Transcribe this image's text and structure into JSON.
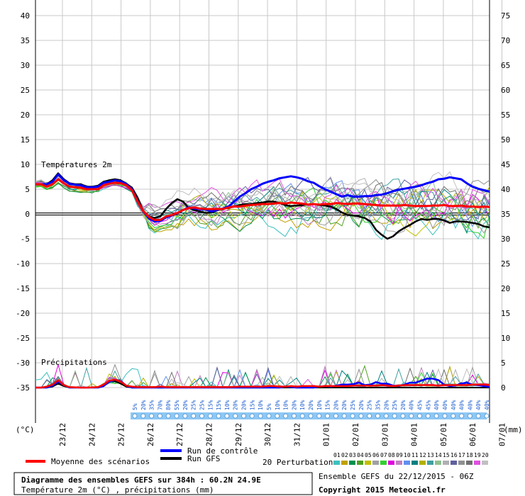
{
  "chart_data": {
    "type": "line",
    "title": "Diagramme des ensembles GEFS sur 384h : 60.2N 24.9E",
    "subtitle": "Température 2m (°C) , précipitations (mm)",
    "date_labels": [
      "23/12",
      "24/12",
      "25/12",
      "26/12",
      "27/12",
      "28/12",
      "29/12",
      "30/12",
      "31/12",
      "01/01",
      "02/01",
      "03/01",
      "04/01",
      "05/01",
      "06/01",
      "07/01"
    ],
    "left_axis": {
      "unit": "(°C)",
      "ticks": [
        40,
        35,
        30,
        25,
        20,
        15,
        10,
        5,
        0,
        -5,
        -10,
        -15,
        -20,
        -25,
        -30,
        -35
      ],
      "range": [
        -35,
        40
      ]
    },
    "right_axis": {
      "unit": "(mm)",
      "ticks": [
        75,
        70,
        65,
        60,
        55,
        50,
        45,
        40,
        35,
        30,
        25,
        20,
        15,
        10,
        5,
        0
      ]
    },
    "section_labels": {
      "temperature": "Températures 2m",
      "precipitation": "Précipitations"
    },
    "precip_probability": [
      "5%",
      "20%",
      "35%",
      "70%",
      "80%",
      "55%",
      "20%",
      "25%",
      "25%",
      "15%",
      "15%",
      "10%",
      "20%",
      "20%",
      "15%",
      "10%",
      "5%",
      "10%",
      "10%",
      "20%",
      "10%",
      "20%",
      "10%",
      "15%",
      "20%",
      "20%",
      "25%",
      "20%",
      "25%",
      "35%",
      "20%",
      "25%",
      "20%",
      "40%",
      "45%",
      "45%",
      "40%",
      "40%",
      "40%",
      "40%",
      "40%",
      "40%",
      "40%"
    ],
    "legend": {
      "mean": "Moyenne des scénarios",
      "control": "Run de contrôle",
      "gfs": "Run GFS",
      "perturbations_label": "20 Perturbations",
      "perturbation_ids": [
        "01",
        "02",
        "03",
        "04",
        "05",
        "06",
        "07",
        "08",
        "09",
        "10",
        "11",
        "12",
        "13",
        "14",
        "15",
        "16",
        "17",
        "18",
        "19",
        "20"
      ],
      "perturbation_colors": [
        "#3cc0c0",
        "#c0a000",
        "#009050",
        "#50a020",
        "#c0c000",
        "#a0a0a0",
        "#30d030",
        "#e000e0",
        "#c080c0",
        "#6090f0",
        "#008080",
        "#b0b000",
        "#40a0a0",
        "#90c090",
        "#b0b0b0",
        "#6060a0",
        "#909090",
        "#707070",
        "#e050e0",
        "#c0c0c0"
      ]
    },
    "series_temperature": {
      "mean": [
        6,
        6,
        5.5,
        6,
        7,
        6.2,
        5.5,
        5.4,
        5.3,
        5,
        5,
        5,
        5.8,
        6.1,
        6.3,
        6.2,
        5.8,
        4.8,
        2.5,
        0.6,
        -0.6,
        -1.2,
        -1.2,
        -0.5,
        -0.2,
        0.2,
        0.8,
        1.2,
        1.3,
        1.1,
        1,
        1,
        1,
        1,
        1.3,
        1.5,
        1.5,
        1.7,
        1.8,
        1.9,
        2,
        2,
        2.1,
        2.2,
        2.1,
        2.3,
        2.2,
        2.1,
        1.9,
        2,
        1.9,
        2,
        2,
        2.2,
        2.1,
        2,
        2.1,
        2.1,
        2,
        1.9,
        1.8,
        1.7,
        1.7,
        1.7,
        1.7,
        1.8,
        1.7,
        1.6,
        1.6,
        1.6,
        1.7,
        1.7,
        1.8,
        1.6,
        1.6,
        1.7,
        1.5,
        1.5,
        1.4,
        1.5,
        1.4
      ],
      "control": [
        6,
        6,
        6,
        6.5,
        8,
        6.8,
        6.1,
        5.9,
        5.8,
        5.4,
        5.4,
        5.5,
        6.3,
        6.5,
        6.8,
        6.6,
        6,
        5,
        2.6,
        0.6,
        -0.9,
        -1.5,
        -1.4,
        -0.7,
        -0.3,
        0.1,
        0.8,
        1.3,
        1.1,
        1,
        0.9,
        0.5,
        0.8,
        1.1,
        1.5,
        2.5,
        3.5,
        4.2,
        5,
        5.5,
        6.1,
        6.5,
        6.8,
        7.2,
        7.4,
        7.6,
        7.4,
        7.1,
        6.6,
        6.3,
        5.6,
        5,
        4.5,
        4,
        3.5,
        3.8,
        3.5,
        3.5,
        3.6,
        3.6,
        3.8,
        3.9,
        4.2,
        4.6,
        4.9,
        5.1,
        5.3,
        5.5,
        5.8,
        6.2,
        6.5,
        7,
        7.1,
        7.4,
        7.2,
        7,
        6.2,
        5.5,
        5.1,
        4.8,
        4.5
      ],
      "gfs": [
        6,
        6,
        6,
        6.8,
        8.2,
        7,
        6.2,
        6,
        6,
        5.5,
        5.5,
        5.7,
        6.5,
        6.8,
        7,
        6.8,
        6.1,
        5.3,
        3.2,
        0.6,
        -0.5,
        -0.8,
        -0.5,
        1,
        2.2,
        3,
        2.5,
        1.2,
        0.8,
        0.5,
        0.2,
        0.3,
        0.7,
        1.1,
        1.2,
        1.5,
        1.8,
        2,
        2,
        2.2,
        2.3,
        2.5,
        2.5,
        2.2,
        1.8,
        1.6,
        1.7,
        1.8,
        1.9,
        2,
        1.8,
        1.7,
        1.5,
        1,
        0.3,
        -0.2,
        -0.3,
        -0.5,
        -0.8,
        -1.5,
        -3.2,
        -4.2,
        -5,
        -4.5,
        -3.5,
        -2.8,
        -2.2,
        -1.5,
        -1,
        -1.2,
        -1,
        -1,
        -1.3,
        -1.8,
        -1.5,
        -1.5,
        -1.6,
        -1.8,
        -2,
        -2.5,
        -2.7
      ]
    },
    "series_precip": {
      "mean": [
        0,
        0,
        0.2,
        0.6,
        1.5,
        0.5,
        0.1,
        0.05,
        0,
        0,
        0.05,
        0.1,
        0.6,
        1.4,
        1.6,
        1.2,
        0.4,
        0.2,
        0.1,
        0.1,
        0.1,
        0.1,
        0.2,
        0.1,
        0.1,
        0.1,
        0.1,
        0.1,
        0.1,
        0.1,
        0.1,
        0.1,
        0.1,
        0.1,
        0.1,
        0.15,
        0.2,
        0.2,
        0.2,
        0.2,
        0.2,
        0.3,
        0.3,
        0.2,
        0.2,
        0.3,
        0.2,
        0.3,
        0.3,
        0.3,
        0.2,
        0.3,
        0.3,
        0.3,
        0.3,
        0.3,
        0.4,
        0.4,
        0.4,
        0.4,
        0.4,
        0.5,
        0.4,
        0.3,
        0.4,
        0.5,
        0.5,
        0.5,
        0.5,
        0.5,
        0.5,
        0.4,
        0.5,
        0.5,
        0.5,
        0.5,
        0.5,
        0.6,
        0.6,
        0.6,
        0.5
      ],
      "control": [
        0,
        0,
        0,
        0.4,
        1.2,
        0.5,
        0,
        0,
        0,
        0,
        0,
        0,
        0.3,
        1.2,
        1.6,
        1.3,
        0.4,
        0,
        0,
        0,
        0,
        0,
        0,
        0,
        0,
        0,
        0,
        0,
        0,
        0,
        0,
        0,
        0,
        0,
        0,
        0,
        0,
        0,
        0,
        0,
        0,
        0,
        0,
        0,
        0.2,
        0.1,
        0,
        0,
        0,
        0,
        0.2,
        0.3,
        0.2,
        0.4,
        0.6,
        0.6,
        0.7,
        1,
        0.5,
        0.6,
        1.1,
        0.8,
        0.8,
        0.4,
        0.3,
        0.6,
        1,
        1,
        1.4,
        1.8,
        1.8,
        1.5,
        0.6,
        0.3,
        0.4,
        0.8,
        1,
        0.6,
        0.5,
        0.3,
        0.1
      ],
      "gfs": [
        0,
        0,
        0,
        0.2,
        0.8,
        0.3,
        0,
        0,
        0,
        0,
        0,
        0,
        0.4,
        1.3,
        1.3,
        0.8,
        0.2,
        0,
        0,
        0,
        0,
        0,
        0,
        0,
        0,
        0,
        0,
        0,
        0,
        0,
        0,
        0,
        0,
        0,
        0,
        0,
        0,
        0,
        0,
        0,
        0,
        0,
        0,
        0,
        0,
        0,
        0,
        0,
        0,
        0,
        0,
        0,
        0,
        0,
        0,
        0,
        0,
        0,
        0,
        0,
        0,
        0,
        0,
        0,
        0,
        0,
        0,
        0,
        0,
        0,
        0,
        0,
        0,
        0,
        0,
        0,
        0,
        0,
        0,
        0,
        0
      ]
    }
  },
  "footer": {
    "run_info": "Ensemble GEFS du 22/12/2015 - 06Z",
    "copyright": "Copyright 2015 Meteociel.fr"
  },
  "colors": {
    "mean": "#ff0000",
    "control": "#0000ff",
    "gfs": "#000000",
    "grid": "#c8c8c8",
    "prob": "#8ec8f4"
  }
}
